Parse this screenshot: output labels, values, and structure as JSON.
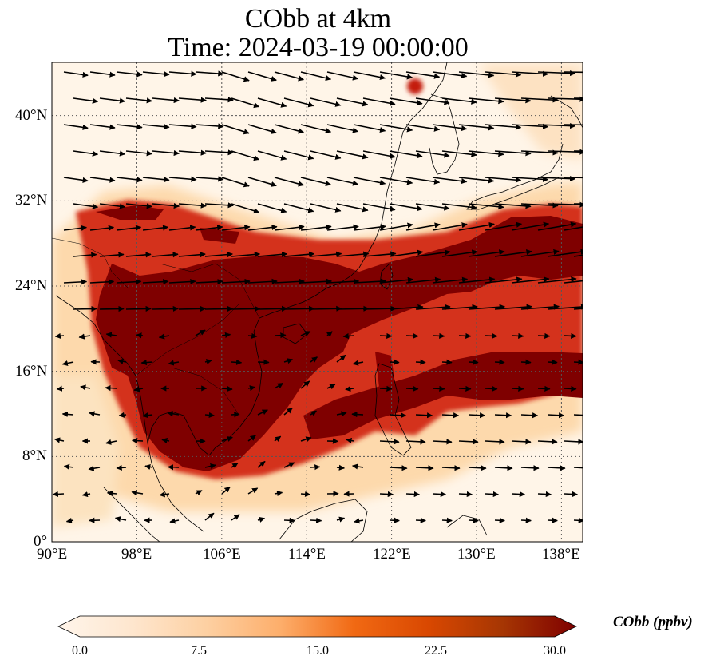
{
  "title_line1": "CObb at 4km",
  "title_line2": "Time: 2024-03-19 00:00:00",
  "map": {
    "lon_range": [
      90,
      140
    ],
    "lat_range": [
      0,
      45
    ],
    "grid_lons": [
      98,
      106,
      114,
      122,
      130,
      138
    ],
    "grid_lats": [
      8,
      16,
      24,
      32,
      40
    ],
    "x_ticks": [
      {
        "lon": 90,
        "label": "90°E"
      },
      {
        "lon": 98,
        "label": "98°E"
      },
      {
        "lon": 106,
        "label": "106°E"
      },
      {
        "lon": 114,
        "label": "114°E"
      },
      {
        "lon": 122,
        "label": "122°E"
      },
      {
        "lon": 130,
        "label": "130°E"
      },
      {
        "lon": 138,
        "label": "138°E"
      }
    ],
    "y_ticks": [
      {
        "lat": 0,
        "label": "0°"
      },
      {
        "lat": 8,
        "label": "8°N"
      },
      {
        "lat": 16,
        "label": "16°N"
      },
      {
        "lat": 24,
        "label": "24°N"
      },
      {
        "lat": 32,
        "label": "32°N"
      },
      {
        "lat": 40,
        "label": "40°N"
      }
    ],
    "colors": {
      "background": "#fff5e8",
      "light": "#fdd9ac",
      "mid": "#ec5b3a",
      "high": "#c41a0e",
      "max": "#7f0000",
      "coast": "#000000",
      "grid": "#555555",
      "vector": "#000000"
    }
  },
  "colorbar": {
    "label": "CObb (ppbv)",
    "min": 0,
    "max": 30,
    "ticks": [
      {
        "value": 0,
        "label": "0.0"
      },
      {
        "value": 7.5,
        "label": "7.5"
      },
      {
        "value": 15,
        "label": "15.0"
      },
      {
        "value": 22.5,
        "label": "22.5"
      },
      {
        "value": 30,
        "label": "30.0"
      }
    ],
    "stops": [
      "#fff5eb",
      "#fee6ce",
      "#fdd0a2",
      "#fdae6b",
      "#f16913",
      "#d94801",
      "#a63603",
      "#7f0000"
    ]
  }
}
